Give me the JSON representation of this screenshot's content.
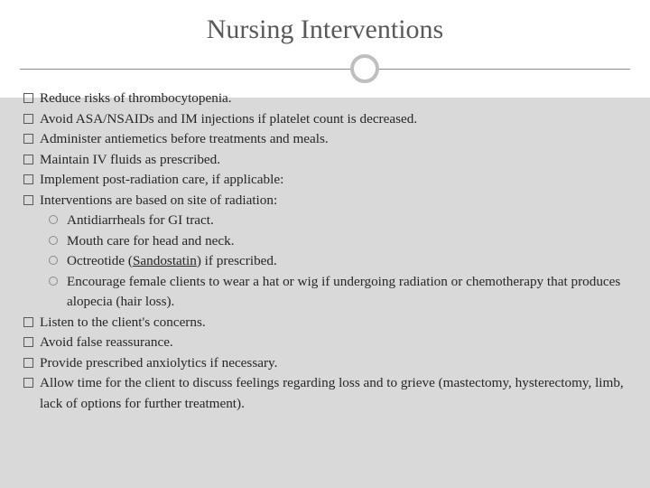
{
  "slide": {
    "title": "Nursing Interventions",
    "title_color": "#595959",
    "title_fontsize": 30,
    "background_top": "#ffffff",
    "background_bottom": "#d9d9d9",
    "divider_ring_color": "#bfbfbf",
    "divider_line_color": "#8a8a8a",
    "body_fontsize": 15.2,
    "body_color": "#262626",
    "items": [
      {
        "level": 1,
        "text": "Reduce risks of thrombocytopenia."
      },
      {
        "level": 1,
        "text": "Avoid ASA/NSAIDs and IM injections if platelet count is decreased."
      },
      {
        "level": 1,
        "text": "Administer antiemetics before treatments and meals."
      },
      {
        "level": 1,
        "text": "Maintain IV fluids as prescribed."
      },
      {
        "level": 1,
        "text": "Implement post-radiation care, if applicable:"
      },
      {
        "level": 1,
        "text": "Interventions are based on site of radiation:"
      },
      {
        "level": 2,
        "text": "Antidiarrheals for GI tract."
      },
      {
        "level": 2,
        "text": "Mouth care for head and neck."
      },
      {
        "level": 2,
        "pre": "Octreotide (",
        "underline": "Sandostatin",
        "post": ") if prescribed."
      },
      {
        "level": 2,
        "text": "Encourage female clients to wear a hat or wig if undergoing radiation or chemotherapy that produces alopecia (hair loss)."
      },
      {
        "level": 1,
        "text": "Listen to the client's concerns."
      },
      {
        "level": 1,
        "text": "Avoid false reassurance."
      },
      {
        "level": 1,
        "text": "Provide prescribed anxiolytics if necessary."
      },
      {
        "level": 1,
        "text": "Allow time for the client to discuss feelings regarding loss and to grieve (mastectomy, hysterectomy, limb, lack of options for further treatment).",
        "cont_indent": true
      }
    ]
  }
}
